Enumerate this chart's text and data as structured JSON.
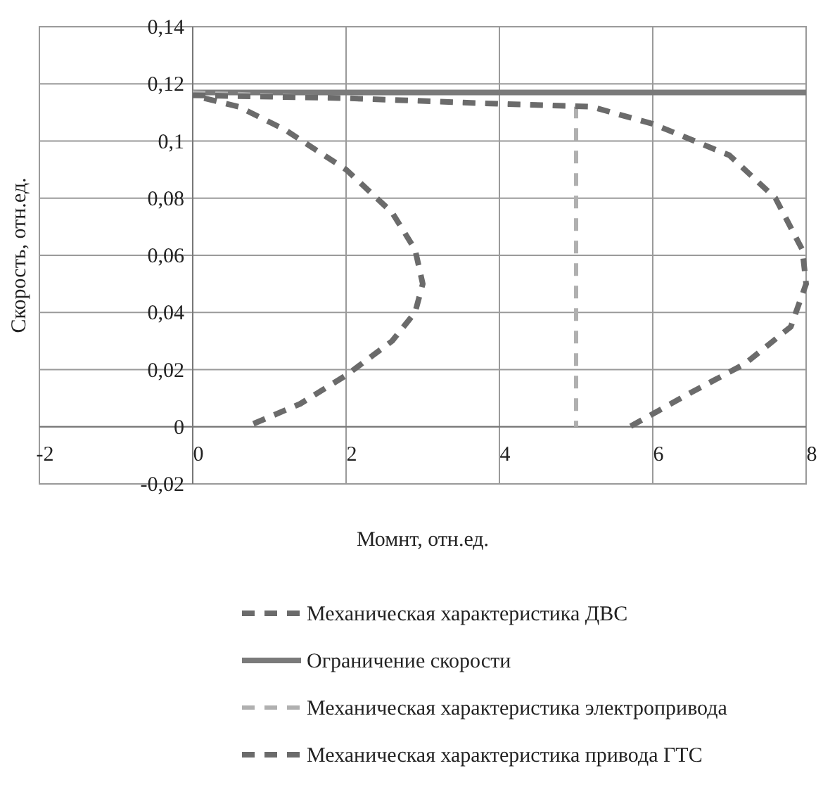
{
  "chart_data": {
    "type": "line",
    "xlabel": "Момнт, отн.ед.",
    "ylabel": "Скорость, отн.ед.",
    "xlim": [
      -2,
      8
    ],
    "xticks": [
      -2,
      0,
      2,
      4,
      6,
      8
    ],
    "ylim": [
      -0.02,
      0.14
    ],
    "yticks": [
      {
        "value": -0.02,
        "label": "-0,02"
      },
      {
        "value": 0,
        "label": "0"
      },
      {
        "value": 0.02,
        "label": "0,02"
      },
      {
        "value": 0.04,
        "label": "0,04"
      },
      {
        "value": 0.06,
        "label": "0,06"
      },
      {
        "value": 0.08,
        "label": "0,08"
      },
      {
        "value": 0.1,
        "label": "0,1"
      },
      {
        "value": 0.12,
        "label": "0,12"
      },
      {
        "value": 0.14,
        "label": "0,14"
      }
    ],
    "grid": true,
    "legend": "bottom",
    "series": [
      {
        "name": "Механическая характеристика ДВС",
        "color": "#6b6b6b",
        "line_style": "dashed",
        "x": [
          0.15,
          0.6,
          1.2,
          2,
          2.6,
          2.9,
          3,
          2.9,
          2.6,
          2,
          1.4,
          0.7
        ],
        "values": [
          0.115,
          0.112,
          0.104,
          0.09,
          0.075,
          0.062,
          0.05,
          0.04,
          0.03,
          0.018,
          0.008,
          0
        ]
      },
      {
        "name": "Ограничение скорости",
        "color": "#7a7a7a",
        "line_style": "solid",
        "x": [
          0,
          8
        ],
        "values": [
          0.117,
          0.117
        ]
      },
      {
        "name": "Механическая характеристика электропривода",
        "color": "#b0b0b0",
        "line_style": "dashed",
        "x": [
          0,
          2,
          4,
          5,
          5
        ],
        "values": [
          0.117,
          0.115,
          0.113,
          0.112,
          0
        ]
      },
      {
        "name": "Механическая характеристика привода ГТС",
        "color": "#6b6b6b",
        "line_style": "dashed",
        "x": [
          0,
          2,
          4,
          5.2,
          6,
          7,
          7.6,
          7.95,
          8,
          7.8,
          7.2,
          6.5,
          5.7
        ],
        "values": [
          0.116,
          0.115,
          0.113,
          0.112,
          0.106,
          0.095,
          0.08,
          0.062,
          0.05,
          0.035,
          0.022,
          0.012,
          0
        ]
      }
    ]
  }
}
